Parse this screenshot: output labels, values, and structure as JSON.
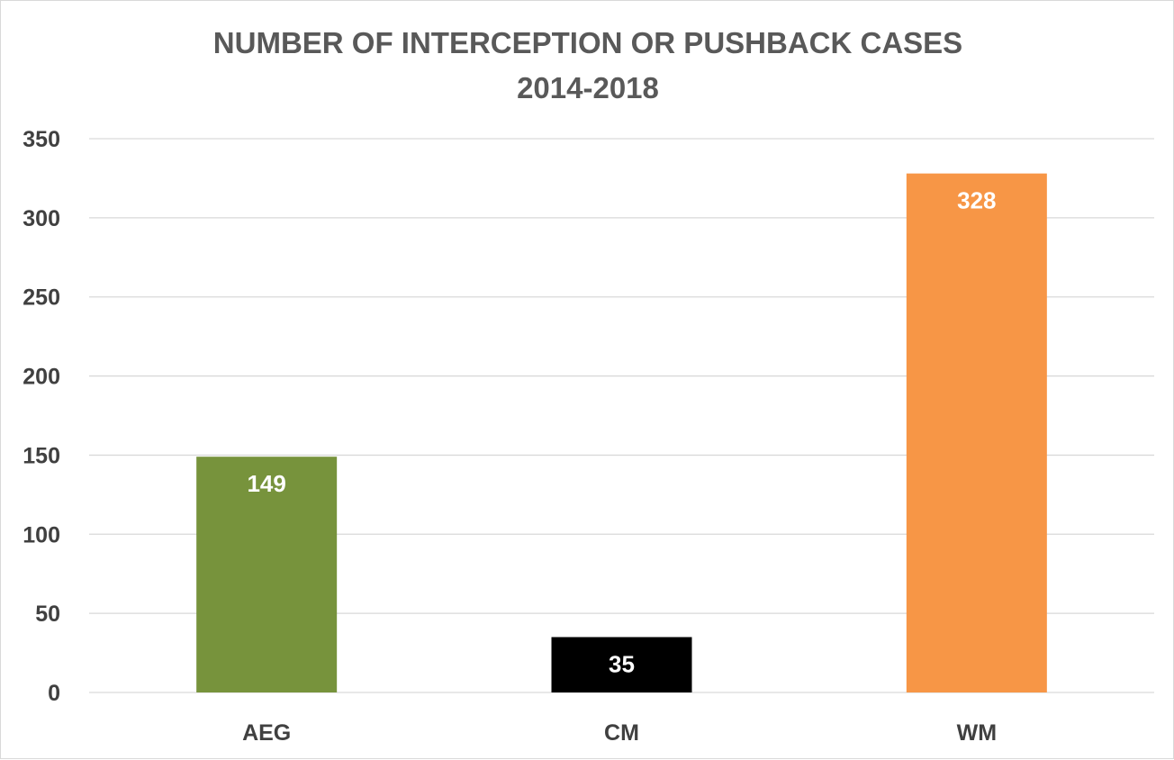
{
  "chart_data": {
    "type": "bar",
    "title": [
      "NUMBER OF INTERCEPTION OR PUSHBACK CASES",
      "2014-2018"
    ],
    "xlabel": "",
    "ylabel": "",
    "categories": [
      "AEG",
      "CM",
      "WM"
    ],
    "values": [
      149,
      35,
      328
    ],
    "colors": [
      "#77933c",
      "#000000",
      "#f79646"
    ],
    "ylim": [
      0,
      350
    ],
    "yticks": [
      0,
      50,
      100,
      150,
      200,
      250,
      300,
      350
    ],
    "grid": true,
    "legend": "none",
    "data_labels": true
  }
}
